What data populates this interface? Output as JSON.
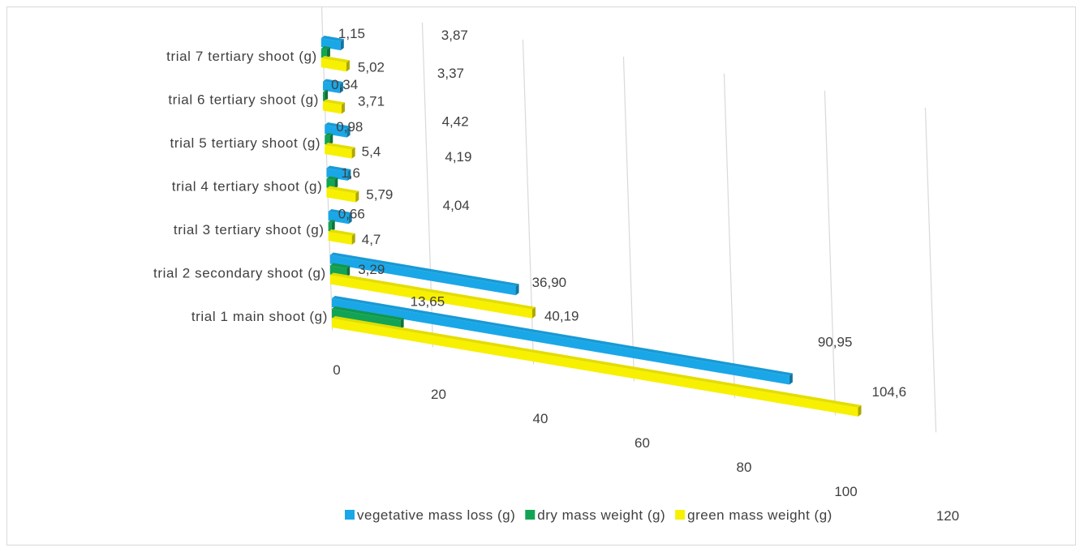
{
  "chart_data": {
    "type": "bar",
    "orientation": "horizontal",
    "perspective": "3d",
    "categories": [
      "trial 1 main shoot (g)",
      "trial 2 secondary shoot (g)",
      "trial 3 tertiary shoot (g)",
      "trial 4 tertiary shoot (g)",
      "trial 5 tertiary shoot (g)",
      "trial 6 tertiary shoot (g)",
      "trial 7 tertiary shoot (g)"
    ],
    "series": [
      {
        "name": "vegetative mass loss (g)",
        "color": "#1aa7e8",
        "values": [
          90.95,
          36.9,
          4.04,
          4.19,
          4.42,
          3.37,
          3.87
        ],
        "labels": [
          "90,95",
          "36,90",
          "4,04",
          "4,19",
          "4,42",
          "3,37",
          "3,87"
        ]
      },
      {
        "name": "dry mass weight (g)",
        "color": "#12a454",
        "values": [
          13.65,
          3.29,
          0.66,
          1.6,
          0.98,
          0.34,
          1.15
        ],
        "labels": [
          "13,65",
          "3,29",
          "0,66",
          "1,6",
          "0,98",
          "0,34",
          "1,15"
        ]
      },
      {
        "name": "green mass weight (g)",
        "color": "#f7f000",
        "values": [
          104.6,
          40.19,
          4.7,
          5.79,
          5.4,
          3.71,
          5.02
        ],
        "labels": [
          "104,6",
          "40,19",
          "4,7",
          "5,79",
          "5,4",
          "3,71",
          "5,02"
        ]
      }
    ],
    "x_ticks": [
      "0",
      "20",
      "40",
      "60",
      "80",
      "100",
      "120"
    ],
    "xlim": [
      0,
      120
    ],
    "xlabel": "",
    "ylabel": "",
    "title": "",
    "grid": true,
    "legend": {
      "position": "bottom",
      "items": [
        "vegetative mass loss (g)",
        "dry mass weight (g)",
        "green mass weight (g)"
      ]
    }
  }
}
